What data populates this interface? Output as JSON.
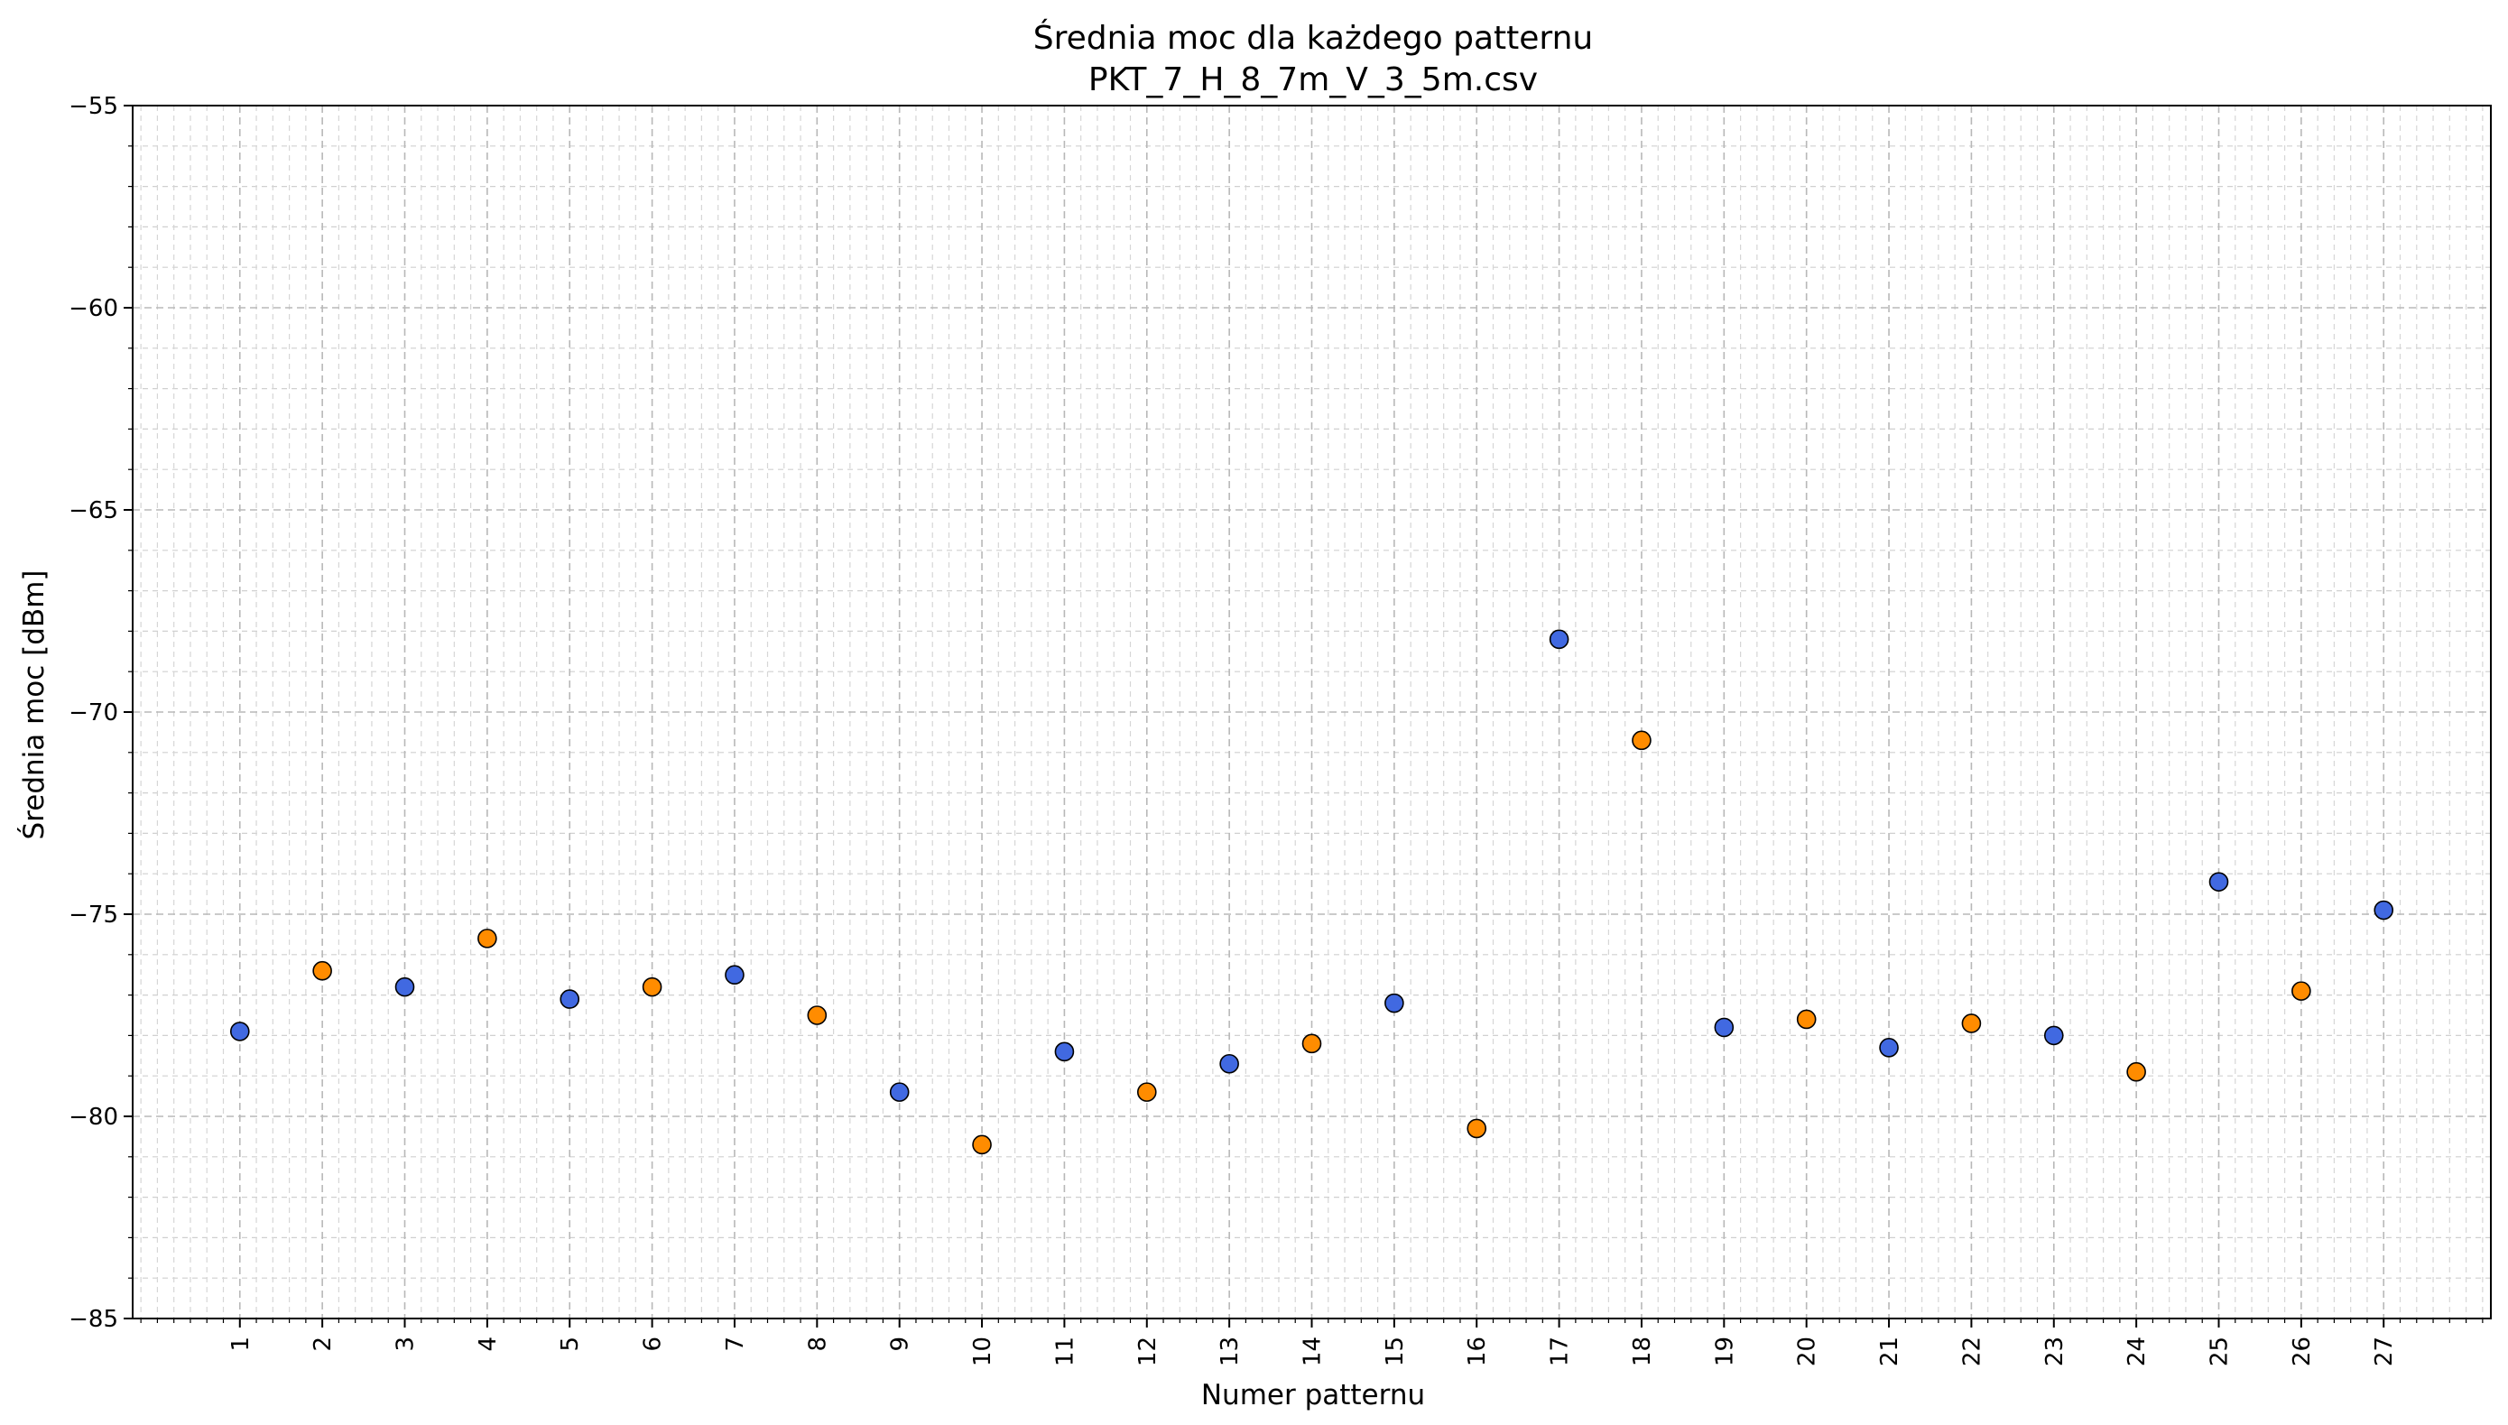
{
  "chart_data": {
    "type": "scatter",
    "title": "Średnia moc dla każdego patternu",
    "subtitle": "PKT_7_H_8_7m_V_3_5m.csv",
    "xlabel": "Numer patternu",
    "ylabel": "Średnia moc [dBm]",
    "ylim": [
      -85,
      -55
    ],
    "xlim": [
      -0.3,
      28.3
    ],
    "yticks": [
      "−55",
      "−60",
      "−65",
      "−70",
      "−75",
      "−80",
      "−85"
    ],
    "ytick_values": [
      -55,
      -60,
      -65,
      -70,
      -75,
      -80,
      -85
    ],
    "xticks": [
      "1",
      "2",
      "3",
      "4",
      "5",
      "6",
      "7",
      "8",
      "9",
      "10",
      "11",
      "12",
      "13",
      "14",
      "15",
      "16",
      "17",
      "18",
      "19",
      "20",
      "21",
      "22",
      "23",
      "24",
      "25",
      "26",
      "27"
    ],
    "grid": true,
    "minor_grid": true,
    "colors": {
      "odd": "#4169E1",
      "even": "#FF8C00",
      "edge": "#000000"
    },
    "x": [
      1,
      2,
      3,
      4,
      5,
      6,
      7,
      8,
      9,
      10,
      11,
      12,
      13,
      14,
      15,
      16,
      17,
      18,
      19,
      20,
      21,
      22,
      23,
      24,
      25,
      26,
      27
    ],
    "y": [
      -77.9,
      -76.4,
      -76.8,
      -75.6,
      -77.1,
      -76.8,
      -76.5,
      -77.5,
      -79.4,
      -80.7,
      -78.4,
      -79.4,
      -78.7,
      -78.2,
      -77.2,
      -80.3,
      -68.2,
      -70.7,
      -77.8,
      -77.6,
      -78.3,
      -77.7,
      -78.0,
      -78.9,
      -74.2,
      -76.9,
      -74.9
    ],
    "point_colors": [
      "#4169E1",
      "#FF8C00",
      "#4169E1",
      "#FF8C00",
      "#4169E1",
      "#FF8C00",
      "#4169E1",
      "#FF8C00",
      "#4169E1",
      "#FF8C00",
      "#4169E1",
      "#FF8C00",
      "#4169E1",
      "#FF8C00",
      "#4169E1",
      "#FF8C00",
      "#4169E1",
      "#FF8C00",
      "#4169E1",
      "#FF8C00",
      "#4169E1",
      "#FF8C00",
      "#4169E1",
      "#FF8C00",
      "#4169E1",
      "#FF8C00",
      "#4169E1"
    ]
  }
}
